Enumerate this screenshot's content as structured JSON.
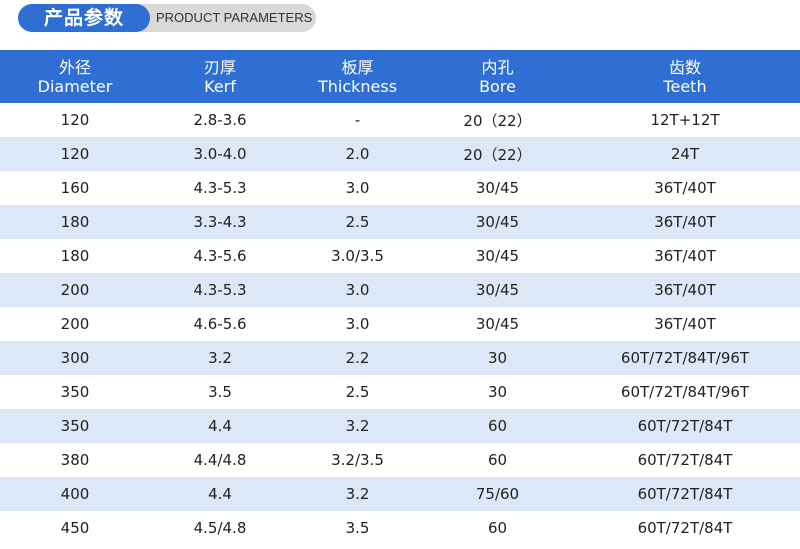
{
  "header": {
    "title": "产品参数",
    "subtitle": "PRODUCT PARAMETERS"
  },
  "table": {
    "columns": [
      {
        "zh": "外径",
        "en": "Diameter"
      },
      {
        "zh": "刃厚",
        "en": "Kerf"
      },
      {
        "zh": "板厚",
        "en": "Thickness"
      },
      {
        "zh": "内孔",
        "en": "Bore"
      },
      {
        "zh": "齿数",
        "en": "Teeth"
      }
    ],
    "rows": [
      [
        "120",
        "2.8-3.6",
        "-",
        "20（22）",
        "12T+12T"
      ],
      [
        "120",
        "3.0-4.0",
        "2.0",
        "20（22）",
        "24T"
      ],
      [
        "160",
        "4.3-5.3",
        "3.0",
        "30/45",
        "36T/40T"
      ],
      [
        "180",
        "3.3-4.3",
        "2.5",
        "30/45",
        "36T/40T"
      ],
      [
        "180",
        "4.3-5.6",
        "3.0/3.5",
        "30/45",
        "36T/40T"
      ],
      [
        "200",
        "4.3-5.3",
        "3.0",
        "30/45",
        "36T/40T"
      ],
      [
        "200",
        "4.6-5.6",
        "3.0",
        "30/45",
        "36T/40T"
      ],
      [
        "300",
        "3.2",
        "2.2",
        "30",
        "60T/72T/84T/96T"
      ],
      [
        "350",
        "3.5",
        "2.5",
        "30",
        "60T/72T/84T/96T"
      ],
      [
        "350",
        "4.4",
        "3.2",
        "60",
        "60T/72T/84T"
      ],
      [
        "380",
        "4.4/4.8",
        "3.2/3.5",
        "60",
        "60T/72T/84T"
      ],
      [
        "400",
        "4.4",
        "3.2",
        "75/60",
        "60T/72T/84T"
      ],
      [
        "450",
        "4.5/4.8",
        "3.5",
        "60",
        "60T/72T/84T"
      ]
    ]
  }
}
